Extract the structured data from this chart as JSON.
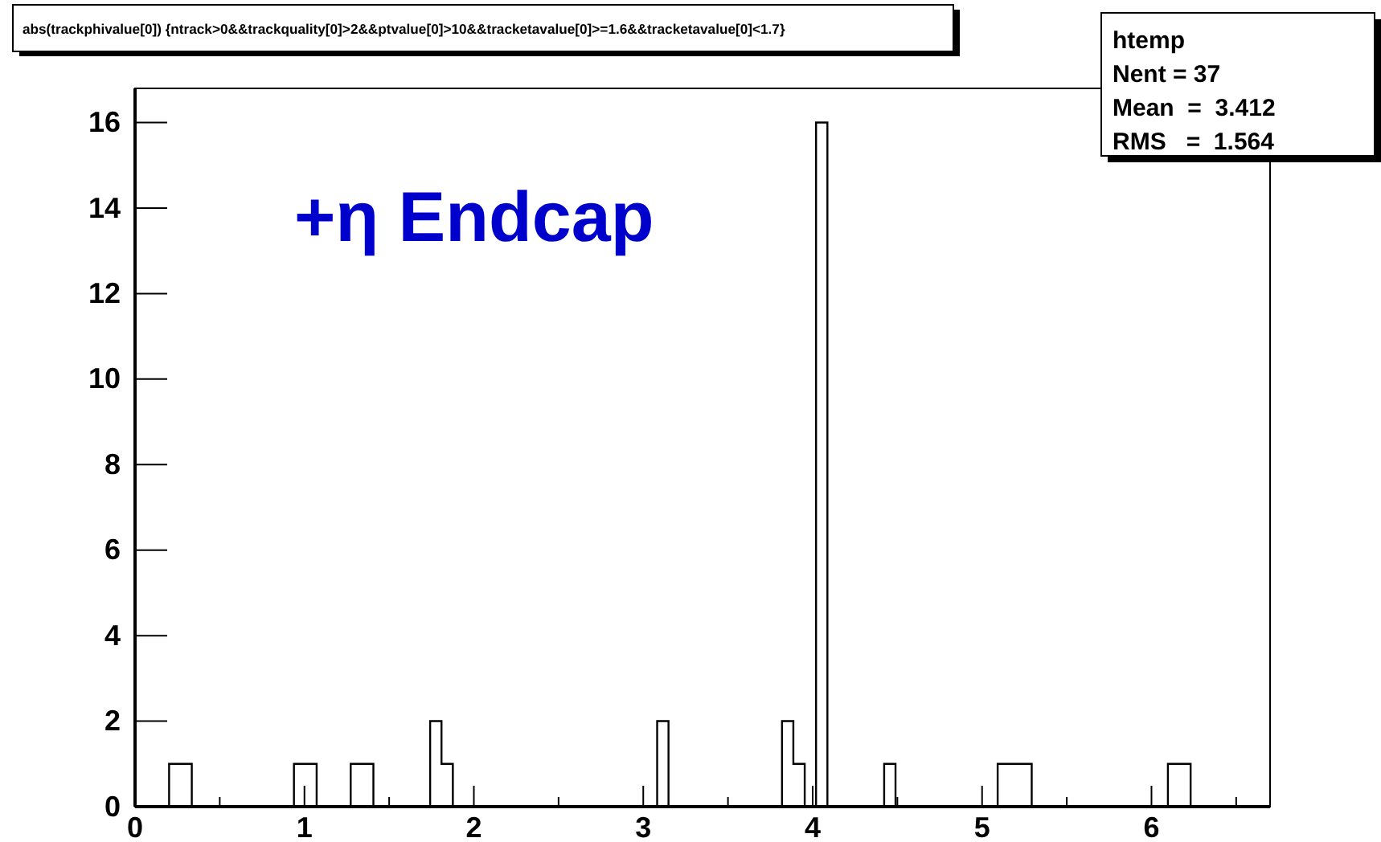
{
  "chart_data": {
    "type": "histogram",
    "title": "abs(trackphivalue[0]) {ntrack>0&&trackquality[0]>2&&ptvalue[0]>10&&tracketavalue[0]>=1.6&&tracketavalue[0]<1.7}",
    "annotations": [
      "+η Endcap",
      "htemp",
      "Nent = 37",
      "Mean  =  3.412",
      "RMS   =  1.564"
    ],
    "bins": [
      0,
      0.067,
      0.134,
      0.201,
      0.268,
      0.335,
      0.402,
      0.469,
      0.536,
      0.603,
      0.67,
      0.737,
      0.804,
      0.871,
      0.938,
      1.005,
      1.072,
      1.139,
      1.206,
      1.273,
      1.34,
      1.407,
      1.474,
      1.541,
      1.608,
      1.675,
      1.742,
      1.809,
      1.876,
      1.943,
      2.01,
      2.077,
      2.144,
      2.211,
      2.278,
      2.345,
      2.412,
      2.479,
      2.546,
      2.613,
      2.68,
      2.747,
      2.814,
      2.881,
      2.948,
      3.015,
      3.082,
      3.149,
      3.216,
      3.283,
      3.35,
      3.417,
      3.484,
      3.551,
      3.618,
      3.685,
      3.752,
      3.819,
      3.886,
      3.953,
      4.02,
      4.087,
      4.154,
      4.221,
      4.288,
      4.355,
      4.422,
      4.489,
      4.556,
      4.623,
      4.69,
      4.757,
      4.824,
      4.891,
      4.958,
      5.025,
      5.092,
      5.159,
      5.226,
      5.293,
      5.36,
      5.427,
      5.494,
      5.561,
      5.628,
      5.695,
      5.762,
      5.829,
      5.896,
      5.963,
      6.03,
      6.097,
      6.164,
      6.231,
      6.298,
      6.365,
      6.432,
      6.499,
      6.566,
      6.633,
      6.7
    ],
    "values": [
      0,
      0,
      0,
      1,
      1,
      0,
      0,
      0,
      0,
      0,
      0,
      0,
      0,
      0,
      1,
      1,
      0,
      0,
      0,
      1,
      1,
      0,
      0,
      0,
      0,
      0,
      2,
      1,
      0,
      0,
      0,
      0,
      0,
      0,
      0,
      0,
      0,
      0,
      0,
      0,
      0,
      0,
      0,
      0,
      0,
      0,
      2,
      0,
      0,
      0,
      0,
      0,
      0,
      0,
      0,
      0,
      0,
      2,
      1,
      0,
      16,
      0,
      0,
      0,
      0,
      0,
      1,
      0,
      0,
      0,
      0,
      0,
      0,
      0,
      0,
      0,
      1,
      1,
      1,
      0,
      0,
      0,
      0,
      0,
      0,
      0,
      0,
      0,
      0,
      0,
      0,
      1,
      1,
      0,
      0,
      0,
      0,
      0,
      0,
      0
    ],
    "color": "#000000",
    "xlim": [
      0,
      6.7
    ],
    "xticks": [
      0,
      {
        "value": 0.5,
        "label": null
      },
      1,
      {
        "value": 1.5,
        "label": null
      },
      2,
      {
        "value": 2.5,
        "label": null
      },
      3,
      {
        "value": 3.5,
        "label": null
      },
      4,
      {
        "value": 4.5,
        "label": null
      },
      5,
      {
        "value": 5.5,
        "label": null
      },
      6,
      {
        "value": 6.5,
        "label": null
      }
    ],
    "ylim": [
      0,
      16.8
    ],
    "yticks": [
      0,
      2,
      4,
      6,
      8,
      10,
      12,
      14,
      16
    ],
    "grid": false
  }
}
